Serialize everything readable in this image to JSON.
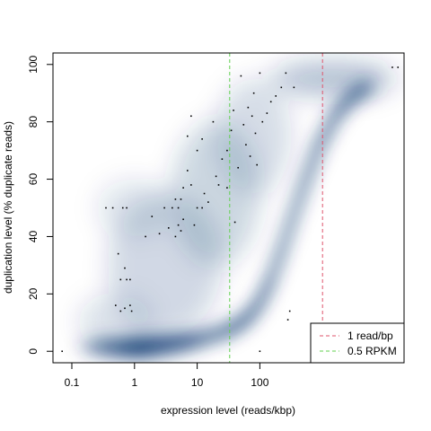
{
  "chart_data": {
    "type": "heatmap",
    "subtype": "smoothScatter density with outlier points",
    "title": "",
    "xlabel": "expression level (reads/kbp)",
    "ylabel": "duplication level (% duplicate reads)",
    "x_scale": "log10",
    "xlim": [
      0.05,
      20000
    ],
    "ylim": [
      -4,
      104
    ],
    "x_ticks": [
      {
        "value": 0.1,
        "label": "0.1"
      },
      {
        "value": 1,
        "label": "1"
      },
      {
        "value": 10,
        "label": "10"
      },
      {
        "value": 100,
        "label": "100"
      }
    ],
    "y_ticks": [
      {
        "value": 0,
        "label": "0"
      },
      {
        "value": 20,
        "label": "20"
      },
      {
        "value": 40,
        "label": "40"
      },
      {
        "value": 60,
        "label": "60"
      },
      {
        "value": 80,
        "label": "80"
      },
      {
        "value": 100,
        "label": "100"
      }
    ],
    "density_color": "#08306b",
    "density_ridge": [
      {
        "x": 0.15,
        "y": 1.5,
        "w": 0.14,
        "a": 0.3
      },
      {
        "x": 0.3,
        "y": 1.5,
        "w": 0.25,
        "a": 0.65
      },
      {
        "x": 0.7,
        "y": 1.2,
        "w": 0.3,
        "a": 0.8
      },
      {
        "x": 1.5,
        "y": 1.5,
        "w": 0.35,
        "a": 0.85
      },
      {
        "x": 4,
        "y": 2.5,
        "w": 0.3,
        "a": 0.85
      },
      {
        "x": 10,
        "y": 4,
        "w": 0.25,
        "a": 0.85
      },
      {
        "x": 30,
        "y": 7,
        "w": 0.22,
        "a": 0.88
      },
      {
        "x": 60,
        "y": 11,
        "w": 0.2,
        "a": 0.9
      },
      {
        "x": 100,
        "y": 17,
        "w": 0.18,
        "a": 0.92
      },
      {
        "x": 150,
        "y": 25,
        "w": 0.17,
        "a": 0.92
      },
      {
        "x": 230,
        "y": 36,
        "w": 0.17,
        "a": 0.93
      },
      {
        "x": 350,
        "y": 48,
        "w": 0.18,
        "a": 0.93
      },
      {
        "x": 550,
        "y": 60,
        "w": 0.19,
        "a": 0.93
      },
      {
        "x": 900,
        "y": 72,
        "w": 0.2,
        "a": 0.93
      },
      {
        "x": 1600,
        "y": 82,
        "w": 0.2,
        "a": 0.9
      },
      {
        "x": 3000,
        "y": 89,
        "w": 0.22,
        "a": 0.8
      },
      {
        "x": 6000,
        "y": 93,
        "w": 0.25,
        "a": 0.55
      }
    ],
    "density_haze": [
      {
        "x": 3,
        "y": 30,
        "rx": 0.9,
        "ry": 25,
        "a": 0.18
      },
      {
        "x": 20,
        "y": 55,
        "rx": 0.7,
        "ry": 25,
        "a": 0.2
      },
      {
        "x": 1,
        "y": 50,
        "rx": 0.6,
        "ry": 10,
        "a": 0.12
      },
      {
        "x": 80,
        "y": 75,
        "rx": 0.6,
        "ry": 20,
        "a": 0.16
      },
      {
        "x": 1500,
        "y": 95,
        "rx": 1.0,
        "ry": 6,
        "a": 0.3
      },
      {
        "x": 0.5,
        "y": 10,
        "rx": 0.6,
        "ry": 10,
        "a": 0.14
      }
    ],
    "outlier_points": [
      [
        0.07,
        0
      ],
      [
        0.35,
        50
      ],
      [
        0.45,
        50
      ],
      [
        0.5,
        16
      ],
      [
        0.55,
        34
      ],
      [
        0.6,
        25
      ],
      [
        0.6,
        14
      ],
      [
        0.65,
        50
      ],
      [
        0.7,
        15
      ],
      [
        0.7,
        29
      ],
      [
        0.75,
        25
      ],
      [
        0.75,
        50
      ],
      [
        0.85,
        16
      ],
      [
        0.85,
        25
      ],
      [
        0.9,
        14
      ],
      [
        1.5,
        40
      ],
      [
        1.9,
        47
      ],
      [
        2.5,
        41
      ],
      [
        3,
        50
      ],
      [
        3.5,
        43
      ],
      [
        4,
        50
      ],
      [
        4.5,
        53
      ],
      [
        4.5,
        40
      ],
      [
        5,
        44
      ],
      [
        5,
        50
      ],
      [
        5.5,
        42
      ],
      [
        5.5,
        53
      ],
      [
        6,
        46
      ],
      [
        6,
        57
      ],
      [
        7,
        63
      ],
      [
        7,
        75
      ],
      [
        8,
        58
      ],
      [
        8,
        82
      ],
      [
        9,
        44
      ],
      [
        10,
        50
      ],
      [
        10,
        70
      ],
      [
        12,
        74
      ],
      [
        12,
        50
      ],
      [
        13,
        55
      ],
      [
        15,
        52
      ],
      [
        18,
        80
      ],
      [
        20,
        61
      ],
      [
        22,
        58
      ],
      [
        25,
        67
      ],
      [
        30,
        70
      ],
      [
        30,
        57
      ],
      [
        35,
        77
      ],
      [
        38,
        84
      ],
      [
        40,
        45
      ],
      [
        45,
        64
      ],
      [
        50,
        96
      ],
      [
        55,
        79
      ],
      [
        60,
        72
      ],
      [
        65,
        85
      ],
      [
        70,
        68
      ],
      [
        75,
        82
      ],
      [
        80,
        90
      ],
      [
        85,
        76
      ],
      [
        90,
        65
      ],
      [
        100,
        97
      ],
      [
        110,
        80
      ],
      [
        130,
        83
      ],
      [
        150,
        87
      ],
      [
        180,
        89
      ],
      [
        220,
        92
      ],
      [
        260,
        97
      ],
      [
        280,
        11
      ],
      [
        300,
        14
      ],
      [
        350,
        92
      ],
      [
        100,
        0
      ],
      [
        13000,
        99
      ],
      [
        16000,
        99
      ]
    ],
    "reference_lines": [
      {
        "name": "1 read/bp",
        "x": 1000,
        "color": "#df536b"
      },
      {
        "name": "0.5 RPKM",
        "x": 33,
        "color": "#61d04f"
      }
    ],
    "legend": {
      "position": "bottom-right",
      "entries": [
        {
          "label": "1 read/bp",
          "color": "#df536b"
        },
        {
          "label": "0.5 RPKM",
          "color": "#61d04f"
        }
      ]
    },
    "grid": false
  }
}
